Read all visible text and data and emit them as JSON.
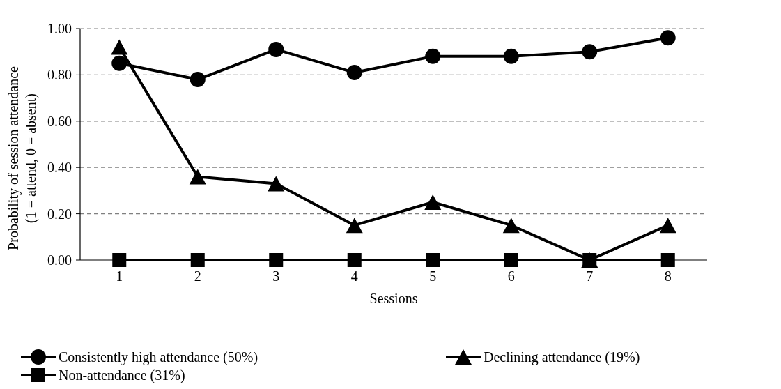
{
  "chart_data": {
    "type": "line",
    "xlabel": "Sessions",
    "ylabel": "Probability of session attendance\n(1 = attend, 0 = absent)",
    "categories": [
      "1",
      "2",
      "3",
      "4",
      "5",
      "6",
      "7",
      "8"
    ],
    "series": [
      {
        "name": "Consistently high attendance (50%)",
        "color": "#000000",
        "marker": "circle",
        "values": [
          0.85,
          0.78,
          0.91,
          0.81,
          0.88,
          0.88,
          0.9,
          0.96
        ]
      },
      {
        "name": "Declining attendance (19%)",
        "color": "#000000",
        "marker": "triangle",
        "values": [
          0.92,
          0.36,
          0.33,
          0.15,
          0.25,
          0.15,
          0.0,
          0.15
        ]
      },
      {
        "name": "Non-attendance (31%)",
        "color": "#000000",
        "marker": "square",
        "values": [
          0,
          0,
          0,
          0,
          0,
          0,
          0,
          0
        ]
      }
    ],
    "ylim": [
      0,
      1
    ],
    "yticks": [
      {
        "value": 0,
        "label": "0.00"
      },
      {
        "value": 0.2,
        "label": "0.20"
      },
      {
        "value": 0.4,
        "label": "0.40"
      },
      {
        "value": 0.6,
        "label": "0.60"
      },
      {
        "value": 0.8,
        "label": "0.80"
      },
      {
        "value": 1,
        "label": "1.00"
      }
    ],
    "grid": "y",
    "legend": "bottom",
    "line_style": "solid"
  }
}
